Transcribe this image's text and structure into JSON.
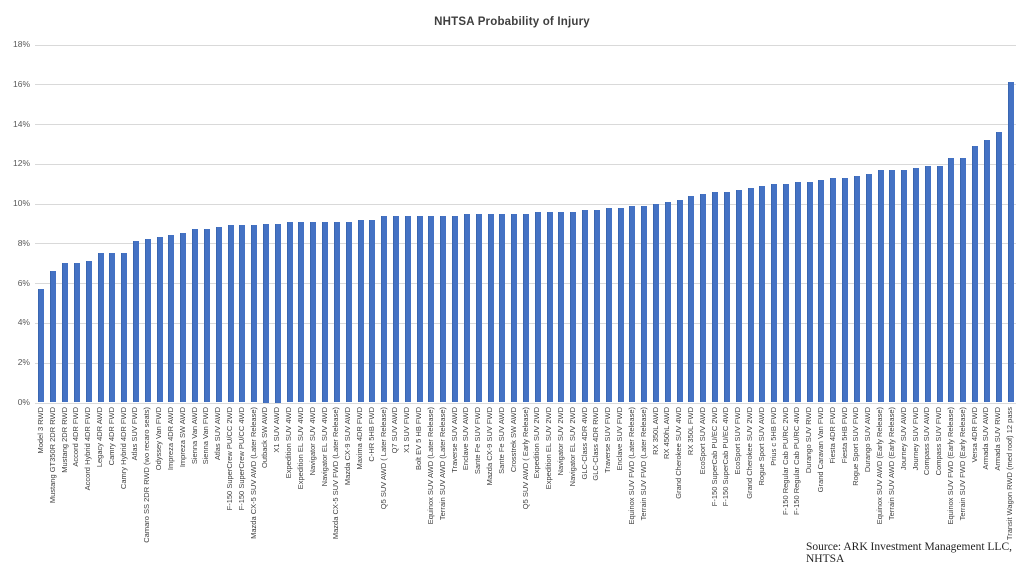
{
  "chart_data": {
    "type": "bar",
    "title": "NHTSA Probability of Injury",
    "source": "Source: ARK Investment Management LLC, NHTSA",
    "bar_color": "#4472C4",
    "grid_color": "#D9D9D9",
    "ylim": [
      0,
      18
    ],
    "ytick_step": 2,
    "ytick_labels": [
      "0%",
      "2%",
      "4%",
      "6%",
      "8%",
      "10%",
      "12%",
      "14%",
      "16%",
      "18%"
    ],
    "grid": true,
    "legend": "none",
    "xlabel": "",
    "ylabel": "",
    "categories": [
      "Model 3 RWD",
      "Mustang GT350R 2DR RWD",
      "Mustang 2DR RWD",
      "Accord 4DR FWD",
      "Accord Hybrid 4DR FWD",
      "Legacy 4DR AWD",
      "Camry 4DR FWD",
      "Camry Hybrid 4DR FWD",
      "Atlas SUV FWD",
      "Camaro SS 2DR RWD (wo recaro seats)",
      "Odyssey Van FWD",
      "Impreza 4DR AWD",
      "Impreza SW AWD",
      "Sienna Van AWD",
      "Sienna Van FWD",
      "Atlas SUV AWD",
      "F-150 SuperCrew PU/CC 2WD",
      "F-150 SuperCrew PU/CC 4WD",
      "Mazda CX-5 SUV AWD (Later Release)",
      "Outback SW AWD",
      "X1 SUV AWD",
      "Expedition SUV 4WD",
      "Expedition EL SUV 4WD",
      "Navigator SUV 4WD",
      "Navigator EL SUV 4WD",
      "Mazda CX-5 SUV FWD (Later Release)",
      "Mazda CX-9 SUV AWD",
      "Maxima 4DR FWD",
      "C-HR 5HB FWD",
      "Q5 SUV AWD ( Later Release)",
      "Q7 SUV AWD",
      "X1 SUV FWD",
      "Bolt EV 5 HB FWD",
      "Equinox SUV AWD (Later Release)",
      "Terrain SUV AWD (Later Release)",
      "Traverse SUV AWD",
      "Enclave SUV AWD",
      "Sante Fe SUV FWD",
      "Mazda CX-9 SUV FWD",
      "Sante Fe SUV AWD",
      "Crosstrek SW AWD",
      "Q5 SUV AWD ( Early Release)",
      "Expedition SUV 2WD",
      "Expedition EL SUV 2WD",
      "Navigator SUV 2WD",
      "Navigator EL SUV 2WD",
      "GLC-Class 4DR 4WD",
      "GLC-Class 4DR RWD",
      "Traverse SUV FWD",
      "Enclave SUV FWD",
      "Equinox SUV FWD (Later Release)",
      "Terrain SUV FWD (Later Release)",
      "RX 350L AWD",
      "RX 450hL AWD",
      "Grand Cherokee SUV 4WD",
      "RX 350L FWD",
      "EcoSport SUV AWD",
      "F-150 SuperCab PU/EC 2WD",
      "F-150 SuperCab PU/EC 4WD",
      "EcoSport SUV FWD",
      "Grand Cherokee SUV 2WD",
      "Rogue Sport SUV AWD",
      "Prius c 5HB FWD",
      "F-150 Regular Cab PU/RC 2WD",
      "F-150 Regular Cab PU/RC 4WD",
      "Durango SUV RWD",
      "Grand Caravan Van FWD",
      "Fiesta 4DR FWD",
      "Fiesta 5HB FWD",
      "Rogue Sport SUV FWD",
      "Durango SUV AWD",
      "Equinox SUV AWD (Early Release)",
      "Terrain SUV AWD (Early Release)",
      "Journey SUV AWD",
      "Journey SUV FWD",
      "Compass SUV AWD",
      "Compass SUV FWD",
      "Equinox SUV FWD (Early Release)",
      "Terrain SUV FWD (Early Release)",
      "Versa 4DR FWD",
      "Armada SUV AWD",
      "Armada SUV RWD",
      "Transit Wagon RWD (med roof) 12 pass"
    ],
    "values": [
      5.7,
      6.6,
      7.0,
      7.0,
      7.1,
      7.5,
      7.5,
      7.5,
      8.1,
      8.2,
      8.3,
      8.4,
      8.5,
      8.7,
      8.7,
      8.8,
      8.9,
      8.9,
      8.9,
      9.0,
      9.0,
      9.1,
      9.1,
      9.1,
      9.1,
      9.1,
      9.1,
      9.2,
      9.2,
      9.4,
      9.4,
      9.4,
      9.4,
      9.4,
      9.4,
      9.4,
      9.5,
      9.5,
      9.5,
      9.5,
      9.5,
      9.5,
      9.6,
      9.6,
      9.6,
      9.6,
      9.7,
      9.7,
      9.8,
      9.8,
      9.9,
      9.9,
      10.0,
      10.1,
      10.2,
      10.4,
      10.5,
      10.6,
      10.6,
      10.7,
      10.8,
      10.9,
      11.0,
      11.0,
      11.1,
      11.1,
      11.2,
      11.3,
      11.3,
      11.4,
      11.5,
      11.7,
      11.7,
      11.7,
      11.8,
      11.9,
      11.9,
      12.3,
      12.3,
      12.9,
      13.2,
      13.6,
      16.1
    ]
  }
}
